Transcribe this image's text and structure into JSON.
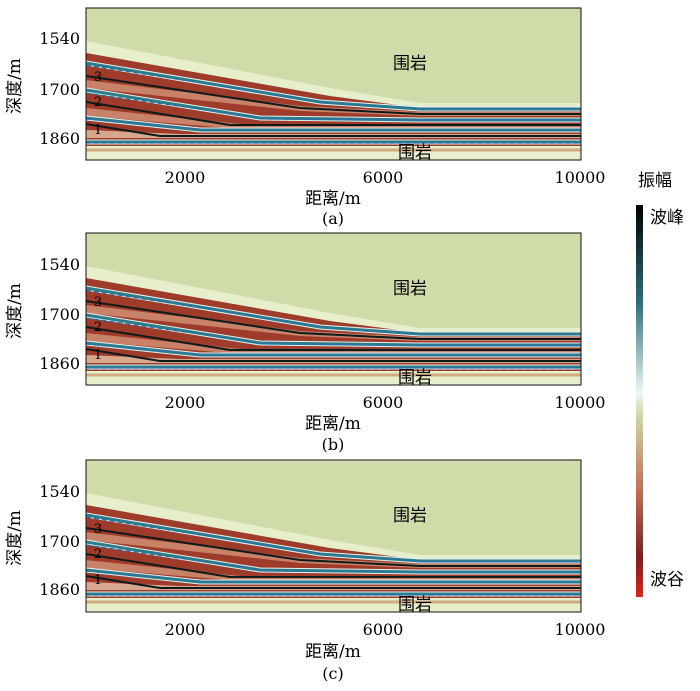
{
  "figure": {
    "colorbar": {
      "title": "振幅",
      "top_label": "波峰",
      "bottom_label": "波谷",
      "stops": [
        "#000000",
        "#2f6f7a",
        "#e8f3f2",
        "#cfdcaa",
        "#c0745a",
        "#7a1e1e",
        "#c81e1e"
      ]
    }
  },
  "chart_data": [
    {
      "type": "heatmap",
      "panel": "(a)",
      "xlabel": "距离/m",
      "ylabel": "深度/m",
      "xticks": [
        2000,
        6000,
        10000
      ],
      "yticks": [
        1540,
        1700,
        1860
      ],
      "xlim": [
        0,
        10000
      ],
      "ylim": [
        1920,
        1430
      ],
      "annotations": [
        "围岩",
        "围岩"
      ],
      "layer_labels": [
        "3",
        "2",
        "1"
      ],
      "colors": {
        "background": "#cfdcaa",
        "trough": "#9e3b2b",
        "peak": "#0d1a1c",
        "boundary": "#2b6fae"
      }
    },
    {
      "type": "heatmap",
      "panel": "(b)",
      "xlabel": "距离/m",
      "ylabel": "深度/m",
      "xticks": [
        2000,
        6000,
        10000
      ],
      "yticks": [
        1540,
        1700,
        1860
      ],
      "xlim": [
        0,
        10000
      ],
      "ylim": [
        1920,
        1430
      ],
      "annotations": [
        "围岩",
        "围岩"
      ],
      "layer_labels": [
        "3",
        "2",
        "1"
      ],
      "colors": {
        "background": "#cfdcaa",
        "trough": "#9e3b2b",
        "peak": "#0d1a1c",
        "boundary": "#2b6fae"
      }
    },
    {
      "type": "heatmap",
      "panel": "(c)",
      "xlabel": "距离/m",
      "ylabel": "深度/m",
      "xticks": [
        2000,
        6000,
        10000
      ],
      "yticks": [
        1540,
        1700,
        1860
      ],
      "xlim": [
        0,
        10000
      ],
      "ylim": [
        1920,
        1430
      ],
      "annotations": [
        "围岩",
        "围岩"
      ],
      "layer_labels": [
        "3",
        "2",
        "1"
      ],
      "colors": {
        "background": "#cfdcaa",
        "trough": "#9e3b2b",
        "peak": "#0d1a1c",
        "boundary": "#2b6fae"
      }
    }
  ]
}
